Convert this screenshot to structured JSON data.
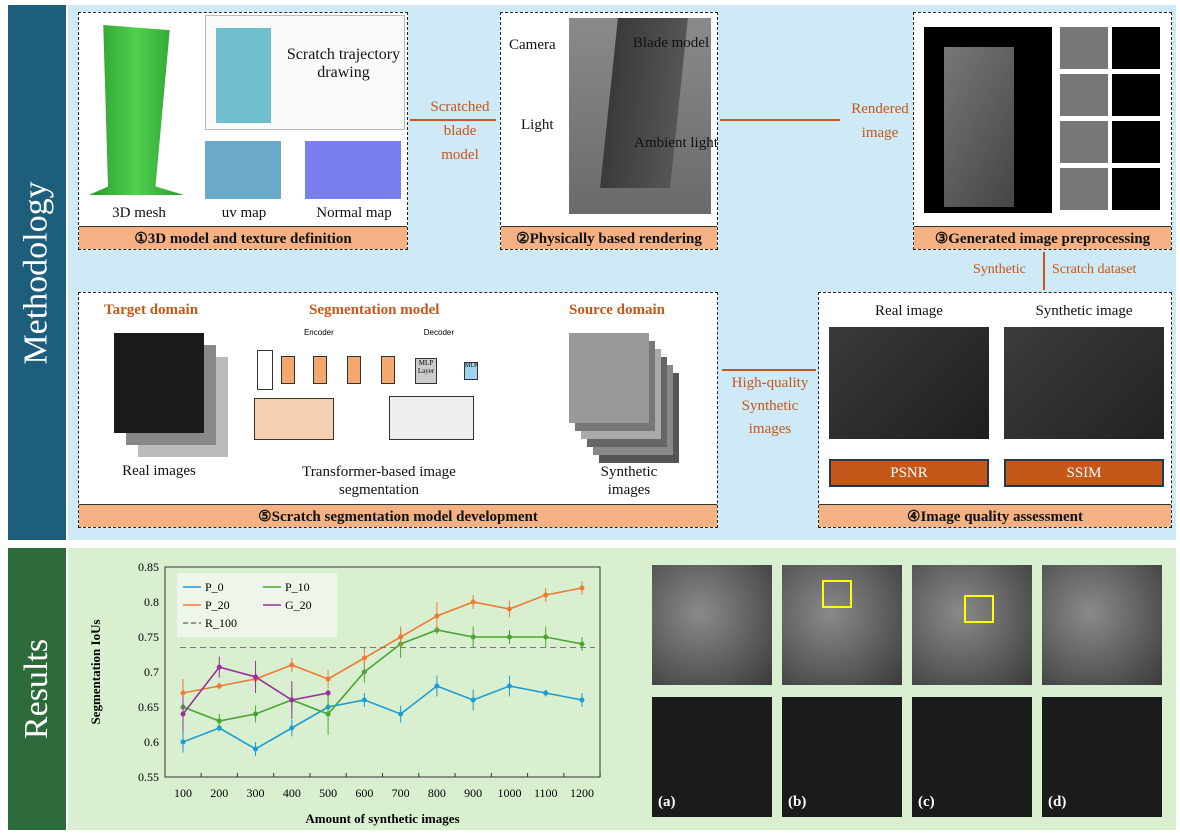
{
  "sections": {
    "methodology": "Methodology",
    "results": "Results"
  },
  "step1": {
    "label": "①3D model and texture definition",
    "mesh": "3D mesh",
    "uv": "uv map",
    "normal": "Normal map",
    "scratch": "Scratch trajectory drawing"
  },
  "arrow1": {
    "a": "Scratched",
    "b": "blade",
    "c": "model"
  },
  "step2": {
    "label": "②Physically based rendering",
    "camera": "Camera",
    "light": "Light",
    "blade": "Blade model",
    "ambient": "Ambient light"
  },
  "arrow2": {
    "a": "Rendered",
    "b": "image"
  },
  "step3": {
    "label": "③Generated image preprocessing"
  },
  "arrow3": {
    "a": "Synthetic",
    "b": "Scratch dataset"
  },
  "step4": {
    "label": "④Image quality assessment",
    "real": "Real image",
    "synthetic": "Synthetic image",
    "psnr": "PSNR",
    "ssim": "SSIM"
  },
  "arrow4": {
    "a": "High-quality",
    "b": "Synthetic",
    "c": "images"
  },
  "step5": {
    "label": "⑤Scratch segmentation model development",
    "target": "Target domain",
    "segmodel": "Segmentation model",
    "source": "Source domain",
    "real_images": "Real images",
    "transformer": "Transformer-based image segmentation",
    "synthetic_images": "Synthetic images",
    "encoder": "Encoder",
    "decoder": "Decoder",
    "mlp": "MLP",
    "mlp_layer": "MLP Layer"
  },
  "result_panels": [
    "(a)",
    "(b)",
    "(c)",
    "(d)"
  ],
  "colors": {
    "methodology_band": "#1c5e7c",
    "results_band": "#2e6b3a",
    "methodology_bg": "#cdeaf6",
    "results_bg": "#d8f0cf",
    "label_bar": "#f4b183",
    "accent": "#c5571b"
  },
  "chart_data": {
    "type": "line",
    "xlabel": "Amount of synthetic images",
    "ylabel": "Segmentation IoUs",
    "x": [
      100,
      200,
      300,
      400,
      500,
      600,
      700,
      800,
      900,
      1000,
      1100,
      1200
    ],
    "ylim": [
      0.55,
      0.85
    ],
    "yticks": [
      "0.55",
      "0.6",
      "0.65",
      "0.7",
      "0.75",
      "0.8",
      "0.85"
    ],
    "legend_position": "top-left",
    "series": [
      {
        "name": "P_0",
        "color": "#1f9bd7",
        "values": [
          0.6,
          0.62,
          0.59,
          0.62,
          0.65,
          0.66,
          0.64,
          0.68,
          0.66,
          0.68,
          0.67,
          0.66
        ],
        "err": [
          0.015,
          0.005,
          0.01,
          0.012,
          0.01,
          0.01,
          0.012,
          0.015,
          0.015,
          0.015,
          0.005,
          0.01
        ]
      },
      {
        "name": "P_10",
        "color": "#4aa534",
        "values": [
          0.65,
          0.63,
          0.64,
          0.66,
          0.64,
          0.7,
          0.74,
          0.76,
          0.75,
          0.75,
          0.75,
          0.74
        ],
        "err": [
          0.01,
          0.01,
          0.012,
          0.015,
          0.03,
          0.015,
          0.02,
          0.006,
          0.015,
          0.01,
          0.015,
          0.01
        ]
      },
      {
        "name": "P_20",
        "color": "#f07a35",
        "values": [
          0.67,
          0.68,
          0.69,
          0.71,
          0.69,
          0.72,
          0.75,
          0.78,
          0.8,
          0.79,
          0.81,
          0.82
        ],
        "err": [
          0.02,
          0.005,
          0.012,
          0.01,
          0.013,
          0.015,
          0.015,
          0.02,
          0.01,
          0.012,
          0.01,
          0.01
        ]
      },
      {
        "name": "G_20",
        "color": "#9b2f9b",
        "values": [
          0.64,
          0.707,
          0.693,
          0.66,
          0.67,
          null,
          null,
          null,
          null,
          null,
          null,
          null
        ],
        "err": [
          0.025,
          0.015,
          0.023,
          0.027,
          0.005,
          0,
          0,
          0,
          0,
          0,
          0,
          0
        ]
      },
      {
        "name": "R_100",
        "color": "#777777",
        "dashed": true,
        "constant": 0.735
      }
    ]
  }
}
